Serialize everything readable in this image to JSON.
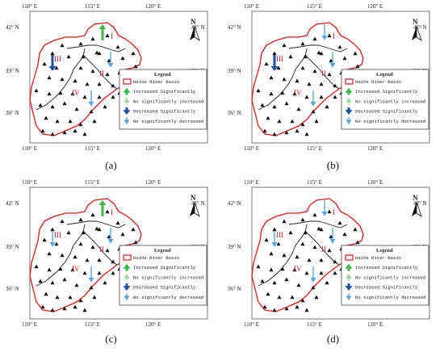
{
  "axes": {
    "lon_labels": [
      "110° E",
      "115° E",
      "120° E"
    ],
    "lat_labels_left": [
      "42° N",
      "39° N",
      "36° N"
    ],
    "lat_labels_right": [
      "42° N",
      "39° N",
      "36° N"
    ]
  },
  "north_label": "N",
  "regions": [
    "I",
    "II",
    "III",
    "IV"
  ],
  "legend": {
    "title": "Legend",
    "items": [
      {
        "label": "Haihe River Basin",
        "symbol": "basin-boundary",
        "color": "#e0191a"
      },
      {
        "label": "Increased Significantly",
        "symbol": "arrow-up-thick",
        "color": "#3cb84a"
      },
      {
        "label": "No significantly increased",
        "symbol": "arrow-up-thin",
        "color": "#9bd79e"
      },
      {
        "label": "Decreased Significantly",
        "symbol": "arrow-down-thick",
        "color": "#1f4ea3"
      },
      {
        "label": "No significantly decreased",
        "symbol": "arrow-down-thin",
        "color": "#5aa6e0"
      }
    ]
  },
  "panels": [
    {
      "caption": "(a)",
      "trends": {
        "I": "increase-sig",
        "II": "decrease-insig",
        "III": "decrease-sig",
        "IV": "decrease-insig"
      }
    },
    {
      "caption": "(b)",
      "trends": {
        "I": "decrease-insig",
        "II": "decrease-insig",
        "III": "decrease-sig",
        "IV": "decrease-insig"
      }
    },
    {
      "caption": "(c)",
      "trends": {
        "I": "increase-sig",
        "II": "decrease-insig",
        "III": "decrease-insig",
        "IV": "decrease-insig"
      }
    },
    {
      "caption": "(d)",
      "trends": {
        "I": "decrease-insig",
        "II": "decrease-insig",
        "III": "decrease-insig",
        "IV": "decrease-insig"
      }
    }
  ]
}
